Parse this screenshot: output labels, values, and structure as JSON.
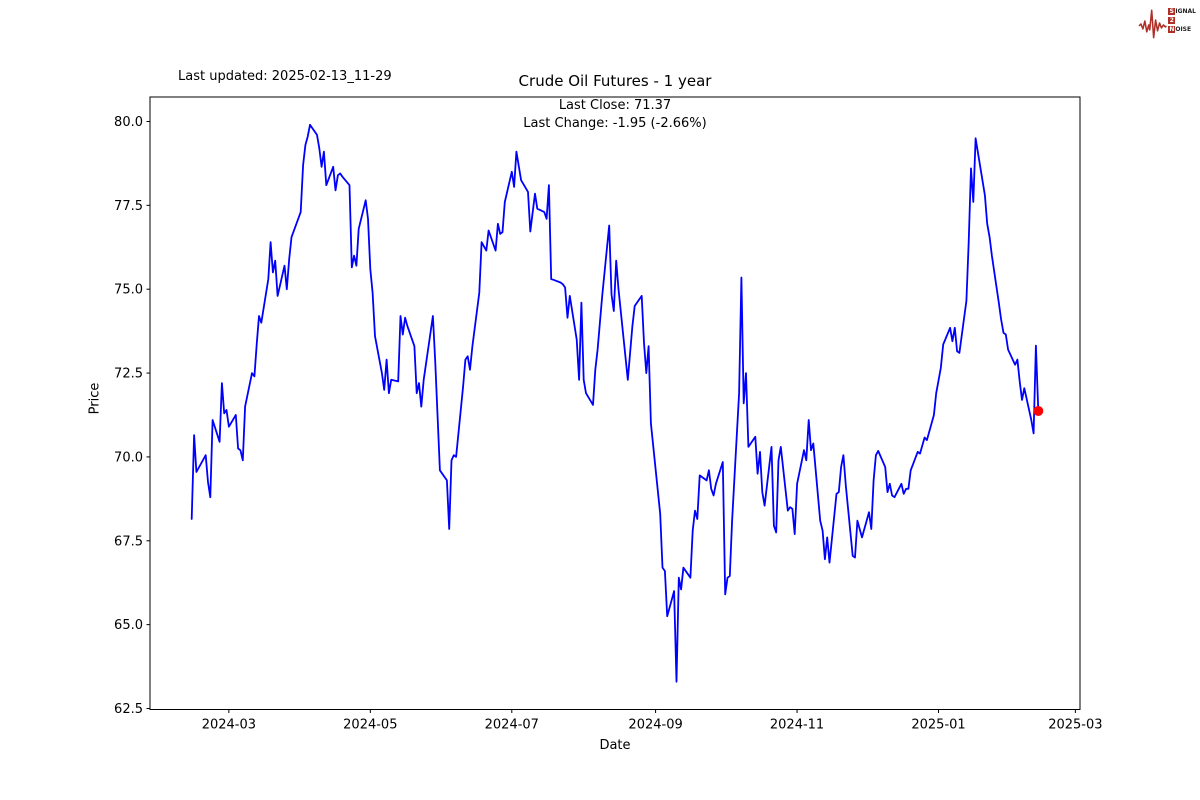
{
  "page": {
    "background": "#ffffff"
  },
  "header": {
    "last_updated": "Last updated: 2025-02-13_11-29"
  },
  "branding": {
    "logo_color": "#b03028",
    "word1_first": "S",
    "word1_rest": "IGNAL",
    "word2": "2",
    "word3_first": "N",
    "word3_rest": "OISE"
  },
  "chart_data": {
    "type": "line",
    "title": "Crude Oil Futures - 1 year",
    "annotation_line1": "Last Close: 71.37",
    "annotation_line2": "Last Change: -1.95 (-2.66%)",
    "last_close": 71.37,
    "last_change": -1.95,
    "last_change_pct": -2.66,
    "xlabel": "Date",
    "ylabel": "Price",
    "line_color": "#0000ff",
    "marker_color": "#ff0000",
    "grid": false,
    "legend": "none",
    "xlim": [
      "2024-01-27",
      "2025-03-03"
    ],
    "ylim": [
      62.47,
      80.73
    ],
    "x_ticks": [
      "2024-03",
      "2024-05",
      "2024-07",
      "2024-09",
      "2024-11",
      "2025-01",
      "2025-03"
    ],
    "y_ticks": [
      62.5,
      65.0,
      67.5,
      70.0,
      72.5,
      75.0,
      77.5,
      80.0
    ],
    "series": [
      {
        "name": "Crude Oil Futures",
        "dates": [
          "2024-02-14",
          "2024-02-15",
          "2024-02-16",
          "2024-02-20",
          "2024-02-21",
          "2024-02-22",
          "2024-02-23",
          "2024-02-26",
          "2024-02-27",
          "2024-02-28",
          "2024-02-29",
          "2024-03-01",
          "2024-03-04",
          "2024-03-05",
          "2024-03-06",
          "2024-03-07",
          "2024-03-08",
          "2024-03-11",
          "2024-03-12",
          "2024-03-13",
          "2024-03-14",
          "2024-03-15",
          "2024-03-18",
          "2024-03-19",
          "2024-03-20",
          "2024-03-21",
          "2024-03-22",
          "2024-03-25",
          "2024-03-26",
          "2024-03-27",
          "2024-03-28",
          "2024-04-01",
          "2024-04-02",
          "2024-04-03",
          "2024-04-04",
          "2024-04-05",
          "2024-04-08",
          "2024-04-09",
          "2024-04-10",
          "2024-04-11",
          "2024-04-12",
          "2024-04-15",
          "2024-04-16",
          "2024-04-17",
          "2024-04-18",
          "2024-04-19",
          "2024-04-22",
          "2024-04-23",
          "2024-04-24",
          "2024-04-25",
          "2024-04-26",
          "2024-04-29",
          "2024-04-30",
          "2024-05-01",
          "2024-05-02",
          "2024-05-03",
          "2024-05-06",
          "2024-05-07",
          "2024-05-08",
          "2024-05-09",
          "2024-05-10",
          "2024-05-13",
          "2024-05-14",
          "2024-05-15",
          "2024-05-16",
          "2024-05-17",
          "2024-05-20",
          "2024-05-21",
          "2024-05-22",
          "2024-05-23",
          "2024-05-24",
          "2024-05-28",
          "2024-05-29",
          "2024-05-30",
          "2024-05-31",
          "2024-06-03",
          "2024-06-04",
          "2024-06-05",
          "2024-06-06",
          "2024-06-07",
          "2024-06-10",
          "2024-06-11",
          "2024-06-12",
          "2024-06-13",
          "2024-06-14",
          "2024-06-17",
          "2024-06-18",
          "2024-06-20",
          "2024-06-21",
          "2024-06-24",
          "2024-06-25",
          "2024-06-26",
          "2024-06-27",
          "2024-06-28",
          "2024-07-01",
          "2024-07-02",
          "2024-07-03",
          "2024-07-05",
          "2024-07-08",
          "2024-07-09",
          "2024-07-11",
          "2024-07-12",
          "2024-07-15",
          "2024-07-16",
          "2024-07-17",
          "2024-07-18",
          "2024-07-19",
          "2024-07-22",
          "2024-07-23",
          "2024-07-24",
          "2024-07-25",
          "2024-07-26",
          "2024-07-29",
          "2024-07-30",
          "2024-07-31",
          "2024-08-01",
          "2024-08-02",
          "2024-08-05",
          "2024-08-06",
          "2024-08-07",
          "2024-08-08",
          "2024-08-09",
          "2024-08-12",
          "2024-08-13",
          "2024-08-14",
          "2024-08-15",
          "2024-08-16",
          "2024-08-19",
          "2024-08-20",
          "2024-08-21",
          "2024-08-22",
          "2024-08-23",
          "2024-08-26",
          "2024-08-27",
          "2024-08-28",
          "2024-08-29",
          "2024-08-30",
          "2024-09-03",
          "2024-09-04",
          "2024-09-05",
          "2024-09-06",
          "2024-09-09",
          "2024-09-10",
          "2024-09-11",
          "2024-09-12",
          "2024-09-13",
          "2024-09-16",
          "2024-09-17",
          "2024-09-18",
          "2024-09-19",
          "2024-09-20",
          "2024-09-23",
          "2024-09-24",
          "2024-09-25",
          "2024-09-26",
          "2024-09-27",
          "2024-09-30",
          "2024-10-01",
          "2024-10-02",
          "2024-10-03",
          "2024-10-04",
          "2024-10-07",
          "2024-10-08",
          "2024-10-09",
          "2024-10-10",
          "2024-10-11",
          "2024-10-14",
          "2024-10-15",
          "2024-10-16",
          "2024-10-17",
          "2024-10-18",
          "2024-10-21",
          "2024-10-22",
          "2024-10-23",
          "2024-10-24",
          "2024-10-25",
          "2024-10-28",
          "2024-10-29",
          "2024-10-30",
          "2024-10-31",
          "2024-11-01",
          "2024-11-04",
          "2024-11-05",
          "2024-11-06",
          "2024-11-07",
          "2024-11-08",
          "2024-11-11",
          "2024-11-12",
          "2024-11-13",
          "2024-11-14",
          "2024-11-15",
          "2024-11-18",
          "2024-11-19",
          "2024-11-20",
          "2024-11-21",
          "2024-11-22",
          "2024-11-25",
          "2024-11-26",
          "2024-11-27",
          "2024-11-29",
          "2024-12-02",
          "2024-12-03",
          "2024-12-04",
          "2024-12-05",
          "2024-12-06",
          "2024-12-09",
          "2024-12-10",
          "2024-12-11",
          "2024-12-12",
          "2024-12-13",
          "2024-12-16",
          "2024-12-17",
          "2024-12-18",
          "2024-12-19",
          "2024-12-20",
          "2024-12-23",
          "2024-12-24",
          "2024-12-26",
          "2024-12-27",
          "2024-12-30",
          "2024-12-31",
          "2025-01-02",
          "2025-01-03",
          "2025-01-06",
          "2025-01-07",
          "2025-01-08",
          "2025-01-09",
          "2025-01-10",
          "2025-01-13",
          "2025-01-14",
          "2025-01-15",
          "2025-01-16",
          "2025-01-17",
          "2025-01-21",
          "2025-01-22",
          "2025-01-23",
          "2025-01-24",
          "2025-01-27",
          "2025-01-28",
          "2025-01-29",
          "2025-01-30",
          "2025-01-31",
          "2025-02-03",
          "2025-02-04",
          "2025-02-05",
          "2025-02-06",
          "2025-02-07",
          "2025-02-10",
          "2025-02-11",
          "2025-02-12",
          "2025-02-13"
        ],
        "values": [
          68.15,
          70.65,
          69.55,
          70.05,
          69.25,
          68.8,
          71.1,
          70.45,
          72.2,
          71.3,
          71.4,
          70.9,
          71.25,
          70.25,
          70.2,
          69.9,
          71.5,
          72.5,
          72.4,
          73.35,
          74.2,
          74.0,
          75.3,
          76.4,
          75.5,
          75.85,
          74.8,
          75.7,
          75.0,
          75.9,
          76.55,
          77.3,
          78.7,
          79.3,
          79.55,
          79.9,
          79.6,
          79.2,
          78.65,
          79.1,
          78.1,
          78.65,
          77.95,
          78.4,
          78.45,
          78.35,
          78.1,
          75.65,
          76.0,
          75.7,
          76.8,
          77.65,
          77.1,
          75.6,
          74.9,
          73.6,
          72.5,
          72.0,
          72.9,
          71.9,
          72.3,
          72.25,
          74.2,
          73.65,
          74.15,
          73.9,
          73.3,
          71.9,
          72.2,
          71.5,
          72.3,
          74.2,
          72.8,
          71.2,
          69.6,
          69.3,
          67.85,
          69.9,
          70.05,
          70.0,
          72.1,
          72.9,
          73.0,
          72.6,
          73.3,
          74.9,
          76.4,
          76.15,
          76.75,
          76.15,
          76.95,
          76.65,
          76.7,
          77.6,
          78.5,
          78.05,
          79.1,
          78.25,
          77.9,
          76.72,
          77.85,
          77.4,
          77.3,
          77.1,
          78.1,
          75.3,
          75.28,
          75.2,
          75.15,
          75.05,
          74.15,
          74.8,
          73.5,
          72.3,
          74.6,
          72.3,
          71.9,
          71.55,
          72.6,
          73.2,
          74.0,
          74.8,
          76.9,
          74.85,
          74.35,
          75.85,
          75.0,
          73.0,
          72.3,
          73.1,
          73.9,
          74.5,
          74.8,
          73.4,
          72.5,
          73.3,
          71.0,
          68.3,
          66.7,
          66.6,
          65.25,
          66.0,
          63.3,
          66.4,
          66.05,
          66.7,
          66.4,
          67.8,
          68.4,
          68.15,
          69.45,
          69.3,
          69.6,
          69.05,
          68.85,
          69.2,
          69.85,
          65.9,
          66.4,
          66.45,
          68.1,
          71.9,
          75.35,
          71.6,
          72.5,
          70.3,
          70.6,
          69.5,
          70.15,
          68.95,
          68.55,
          70.3,
          67.95,
          67.75,
          69.9,
          70.3,
          68.4,
          68.5,
          68.45,
          67.7,
          69.2,
          70.2,
          69.9,
          71.1,
          70.2,
          70.4,
          68.1,
          67.8,
          66.95,
          67.6,
          66.85,
          68.9,
          68.95,
          69.7,
          70.05,
          69.15,
          67.05,
          67.0,
          68.1,
          67.6,
          68.35,
          67.85,
          69.3,
          70.05,
          70.18,
          69.7,
          68.95,
          69.2,
          68.85,
          68.8,
          69.2,
          68.9,
          69.05,
          69.05,
          69.6,
          70.15,
          70.1,
          70.58,
          70.5,
          71.25,
          71.9,
          72.65,
          73.35,
          73.85,
          73.45,
          73.85,
          73.15,
          73.1,
          74.65,
          76.4,
          78.6,
          77.6,
          79.5,
          77.8,
          76.95,
          76.55,
          76.0,
          74.6,
          74.1,
          73.7,
          73.65,
          73.2,
          72.75,
          72.9,
          72.25,
          71.7,
          72.05,
          71.1,
          70.7,
          73.32,
          71.37
        ]
      }
    ]
  }
}
